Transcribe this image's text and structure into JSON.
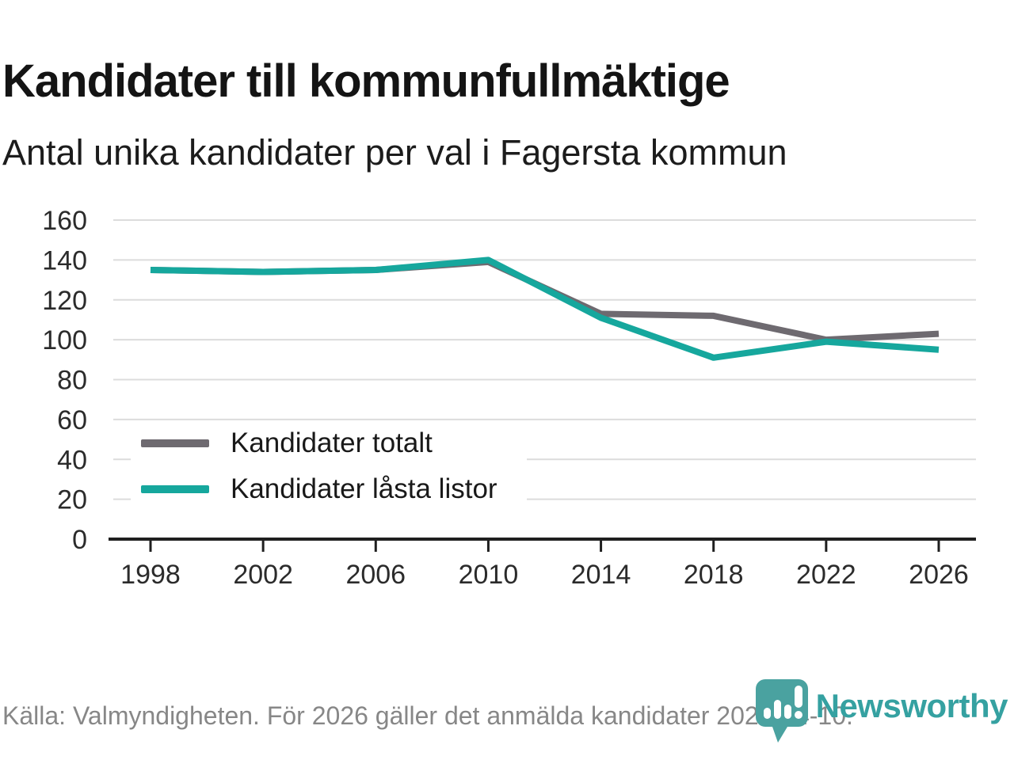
{
  "header": {
    "title": "Kandidater till kommunfullmäktige",
    "subtitle": "Antal unika kandidater per val i Fagersta kommun"
  },
  "chart_data": {
    "type": "line",
    "title": "Kandidater till kommunfullmäktige",
    "subtitle": "Antal unika kandidater per val i Fagersta kommun",
    "categories": [
      "1998",
      "2002",
      "2006",
      "2010",
      "2014",
      "2018",
      "2022",
      "2026"
    ],
    "series": [
      {
        "name": "Kandidater totalt",
        "color": "#6e6a70",
        "values": [
          135,
          134,
          135,
          139,
          113,
          112,
          100,
          103
        ]
      },
      {
        "name": "Kandidater låsta listor",
        "color": "#16a79d",
        "values": [
          135,
          134,
          135,
          140,
          111,
          91,
          99,
          95
        ]
      }
    ],
    "xlabel": "",
    "ylabel": "",
    "ylim": [
      0,
      160
    ],
    "ytick_step": 20,
    "grid": "horizontal-only",
    "gridline_color": "#dcdcdc",
    "axis_color": "#1f1f1f",
    "tick_label_color": "#2b2b2b",
    "legend_position": "inside-left"
  },
  "footer": {
    "source": "Källa: Valmyndigheten. För 2026 gäller det anmälda kandidater 2026-04-10.",
    "brand": "Newsworthy",
    "brand_text_color": "#35a1a1",
    "brand_icon_color": "#4aa2a0"
  }
}
